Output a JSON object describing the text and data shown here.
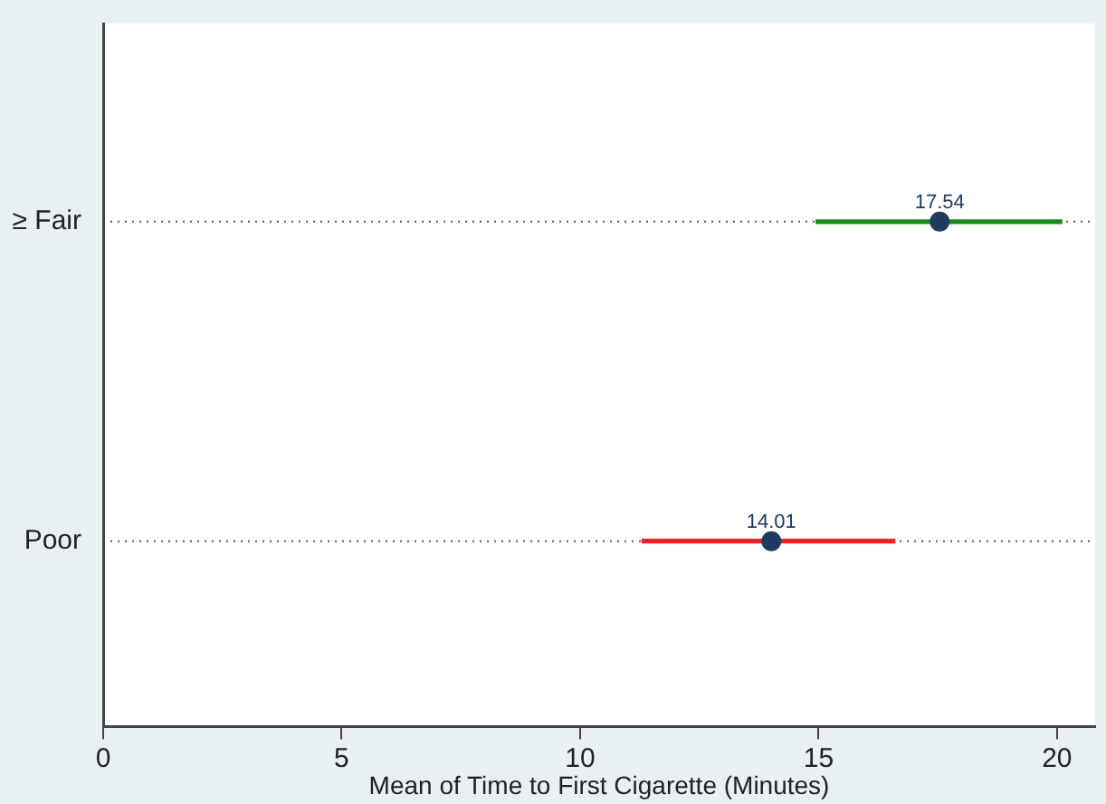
{
  "chart_data": {
    "type": "bar",
    "orientation": "horizontal",
    "categories": [
      "≥ Fair",
      "Poor"
    ],
    "series": [
      {
        "colors": [
          "#1a8a1a",
          "#ee2222"
        ],
        "base": [
          14.95,
          11.3
        ],
        "values": [
          5.15,
          5.3
        ]
      },
      {
        "type": "scatter",
        "color": "#1f3a5f",
        "values": [
          17.54,
          14.01
        ],
        "value_labels": [
          "17.54",
          "14.01"
        ]
      }
    ],
    "xlabel": "Mean of Time to First Cigarette (Minutes)",
    "xlim": [
      0,
      20.8
    ],
    "xticks": [
      0,
      5,
      10,
      15,
      20
    ],
    "grid": "y",
    "legend": false
  }
}
